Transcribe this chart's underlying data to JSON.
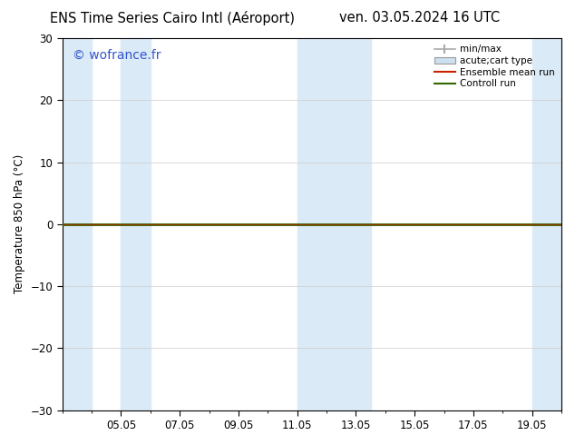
{
  "title_left": "ENS Time Series Cairo Intl (Aéroport)",
  "title_right": "ven. 03.05.2024 16 UTC",
  "ylabel": "Temperature 850 hPa (°C)",
  "ylim": [
    -30,
    30
  ],
  "yticks": [
    -30,
    -20,
    -10,
    0,
    10,
    20,
    30
  ],
  "xlim_start": 3.0,
  "xlim_end": 20.0,
  "xtick_labels": [
    "05.05",
    "07.05",
    "09.05",
    "11.05",
    "13.05",
    "15.05",
    "17.05",
    "19.05"
  ],
  "xtick_positions": [
    5,
    7,
    9,
    11,
    13,
    15,
    17,
    19
  ],
  "watermark": "© wofrance.fr",
  "watermark_color": "#3355cc",
  "background_color": "#ffffff",
  "plot_bg_color": "#ffffff",
  "zero_line_color": "#000000",
  "zero_line_y": 0,
  "control_run_color": "#336600",
  "ensemble_mean_color": "#cc2200",
  "shaded_color": "#daeaf7",
  "shaded_regions": [
    {
      "xmin": 3.0,
      "xmax": 4.0
    },
    {
      "xmin": 5.0,
      "xmax": 6.0
    },
    {
      "xmin": 11.0,
      "xmax": 12.0
    },
    {
      "xmin": 12.0,
      "xmax": 13.5
    },
    {
      "xmin": 19.0,
      "xmax": 20.0
    }
  ],
  "legend_items": [
    {
      "label": "min/max",
      "type": "errorbar",
      "color": "#aaaaaa"
    },
    {
      "label": "acute;cart type",
      "type": "box",
      "color": "#cce0f0"
    },
    {
      "label": "Ensemble mean run",
      "type": "line",
      "color": "#cc2200"
    },
    {
      "label": "Controll run",
      "type": "line",
      "color": "#336600"
    }
  ],
  "figsize": [
    6.34,
    4.9
  ],
  "dpi": 100
}
